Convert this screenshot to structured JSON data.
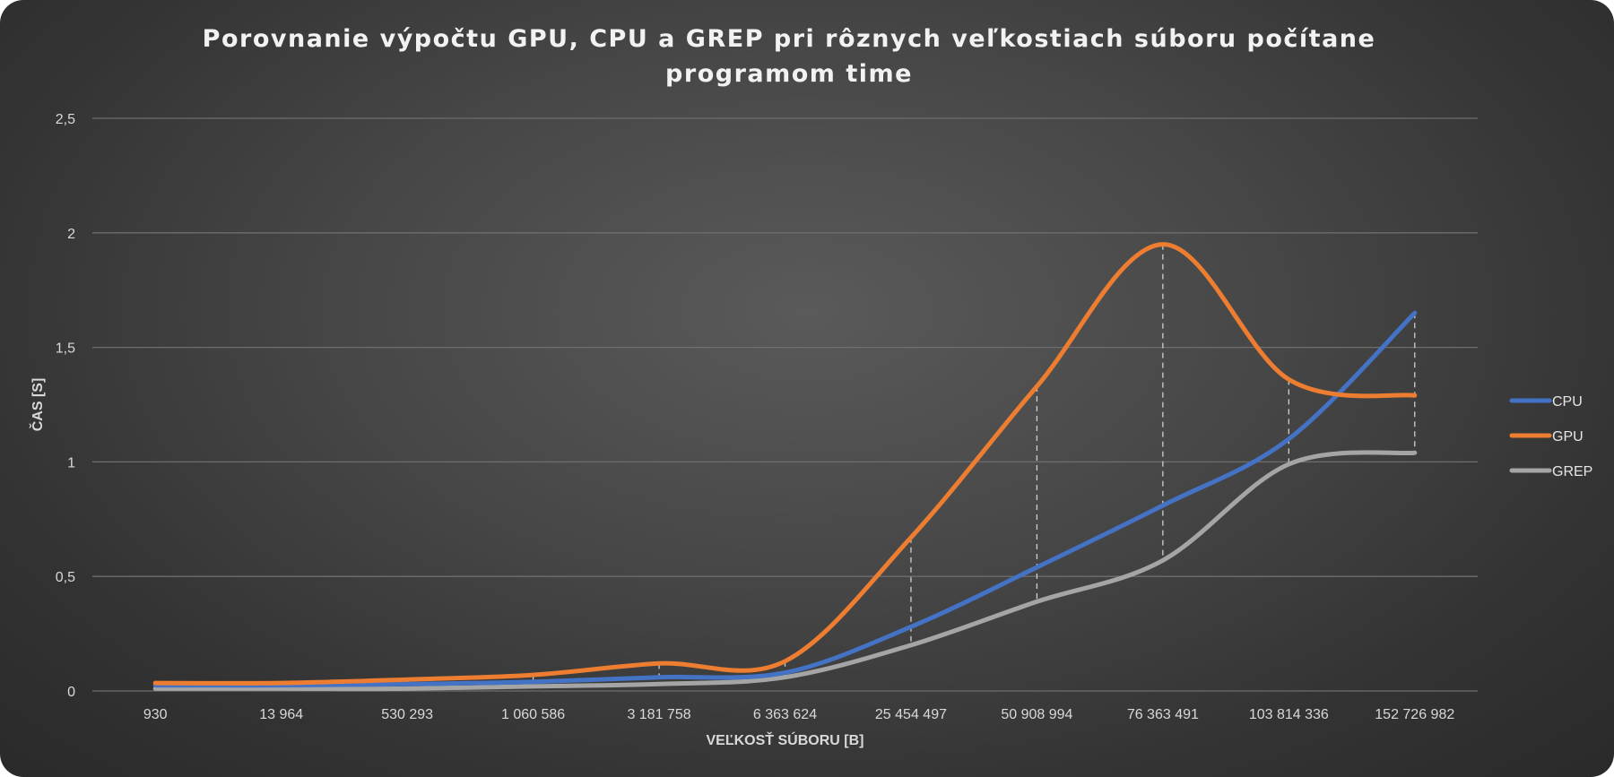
{
  "chart_data": {
    "type": "line",
    "title": "Porovnanie výpočtu GPU, CPU a GREP pri rôznych veľkostiach súboru počítane programom time",
    "xlabel": "VEĽKOSŤ SÚBORU [B]",
    "ylabel": "ČAS [S]",
    "categories": [
      "930",
      "13 964",
      "530 293",
      "1 060 586",
      "3 181 758",
      "6 363 624",
      "25 454 497",
      "50 908 994",
      "76 363 491",
      "103 814 336",
      "152 726 982"
    ],
    "yticks": [
      "0",
      "0,5",
      "1",
      "1,5",
      "2",
      "2,5"
    ],
    "ylim": [
      0,
      2.5
    ],
    "grid": true,
    "smooth": true,
    "legend_position": "right",
    "series": [
      {
        "name": "CPU",
        "color": "#4472c4",
        "values": [
          0.025,
          0.025,
          0.03,
          0.04,
          0.06,
          0.08,
          0.28,
          0.54,
          0.81,
          1.1,
          1.65
        ]
      },
      {
        "name": "GPU",
        "color": "#ed7d31",
        "values": [
          0.035,
          0.035,
          0.05,
          0.07,
          0.12,
          0.13,
          0.67,
          1.33,
          1.95,
          1.36,
          1.29
        ]
      },
      {
        "name": "GREP",
        "color": "#a5a5a5",
        "values": [
          0.01,
          0.01,
          0.01,
          0.02,
          0.03,
          0.06,
          0.2,
          0.39,
          0.57,
          0.99,
          1.04
        ]
      }
    ]
  }
}
